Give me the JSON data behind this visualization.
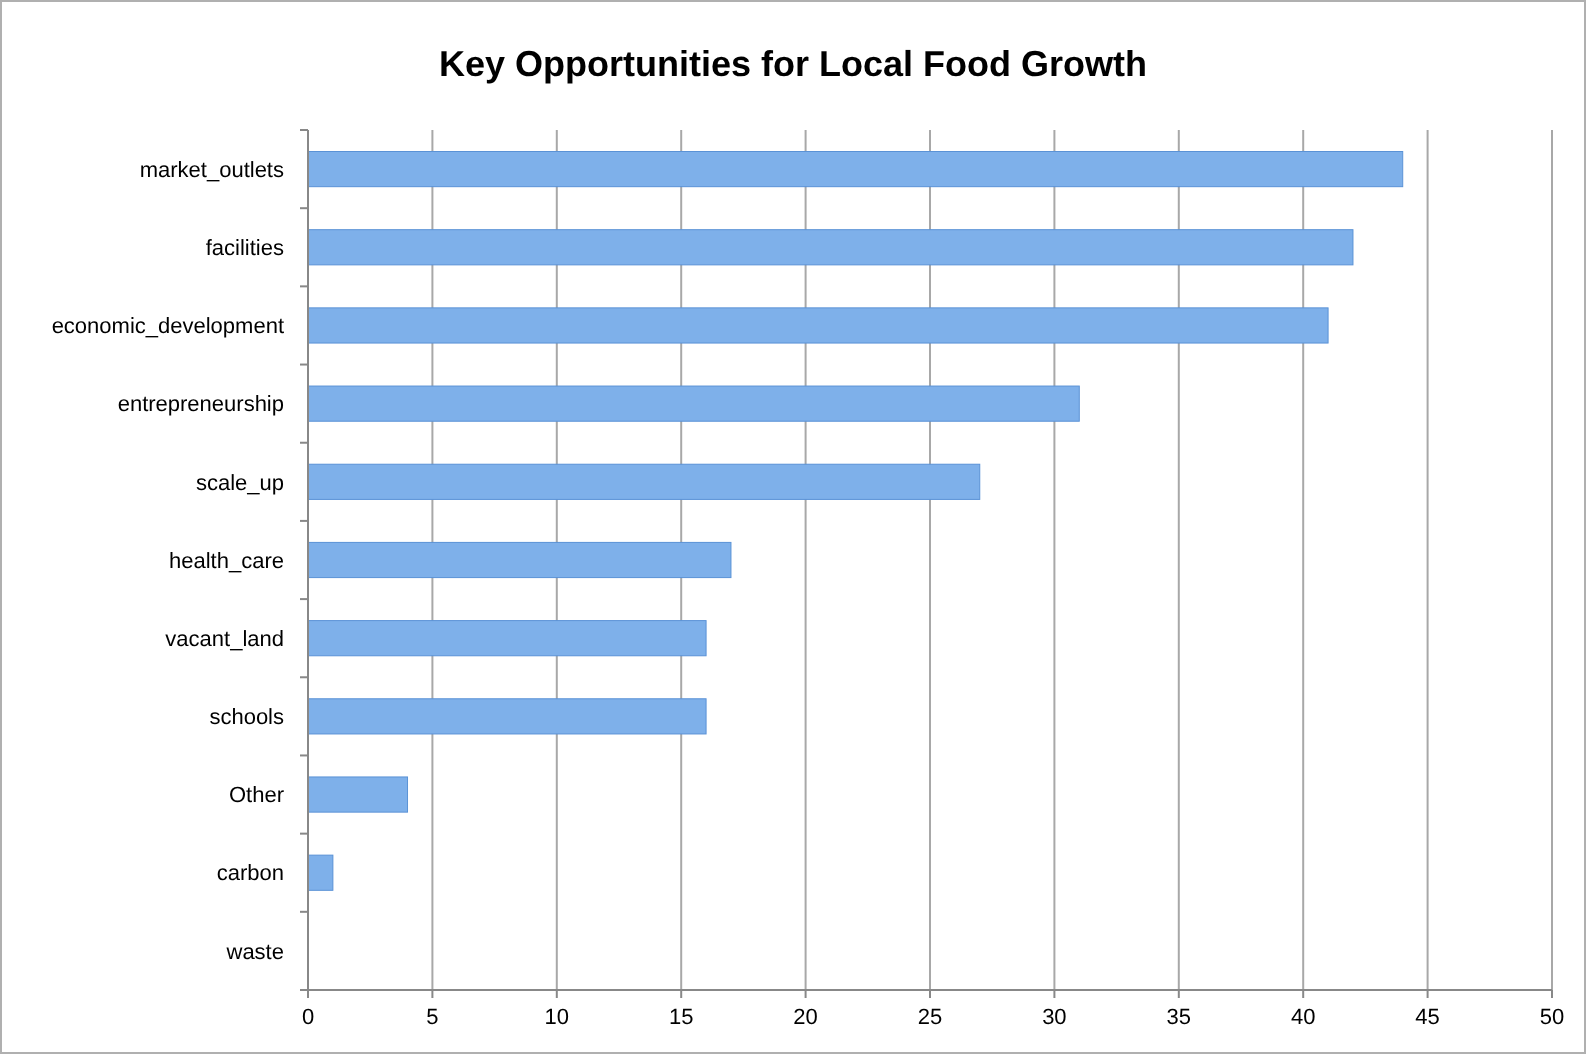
{
  "chart_data": {
    "type": "bar",
    "orientation": "horizontal",
    "title": "Key Opportunities for Local Food Growth",
    "categories": [
      "market_outlets",
      "facilities",
      "economic_development",
      "entrepreneurship",
      "scale_up",
      "health_care",
      "vacant_land",
      "schools",
      "Other",
      "carbon",
      "waste"
    ],
    "values": [
      44,
      42,
      41,
      31,
      27,
      17,
      16,
      16,
      4,
      1,
      0
    ],
    "color": "#7eb0ea",
    "xlim": [
      0,
      50
    ],
    "xticks": [
      0,
      5,
      10,
      15,
      20,
      25,
      30,
      35,
      40,
      45,
      50
    ],
    "grid": "x"
  }
}
